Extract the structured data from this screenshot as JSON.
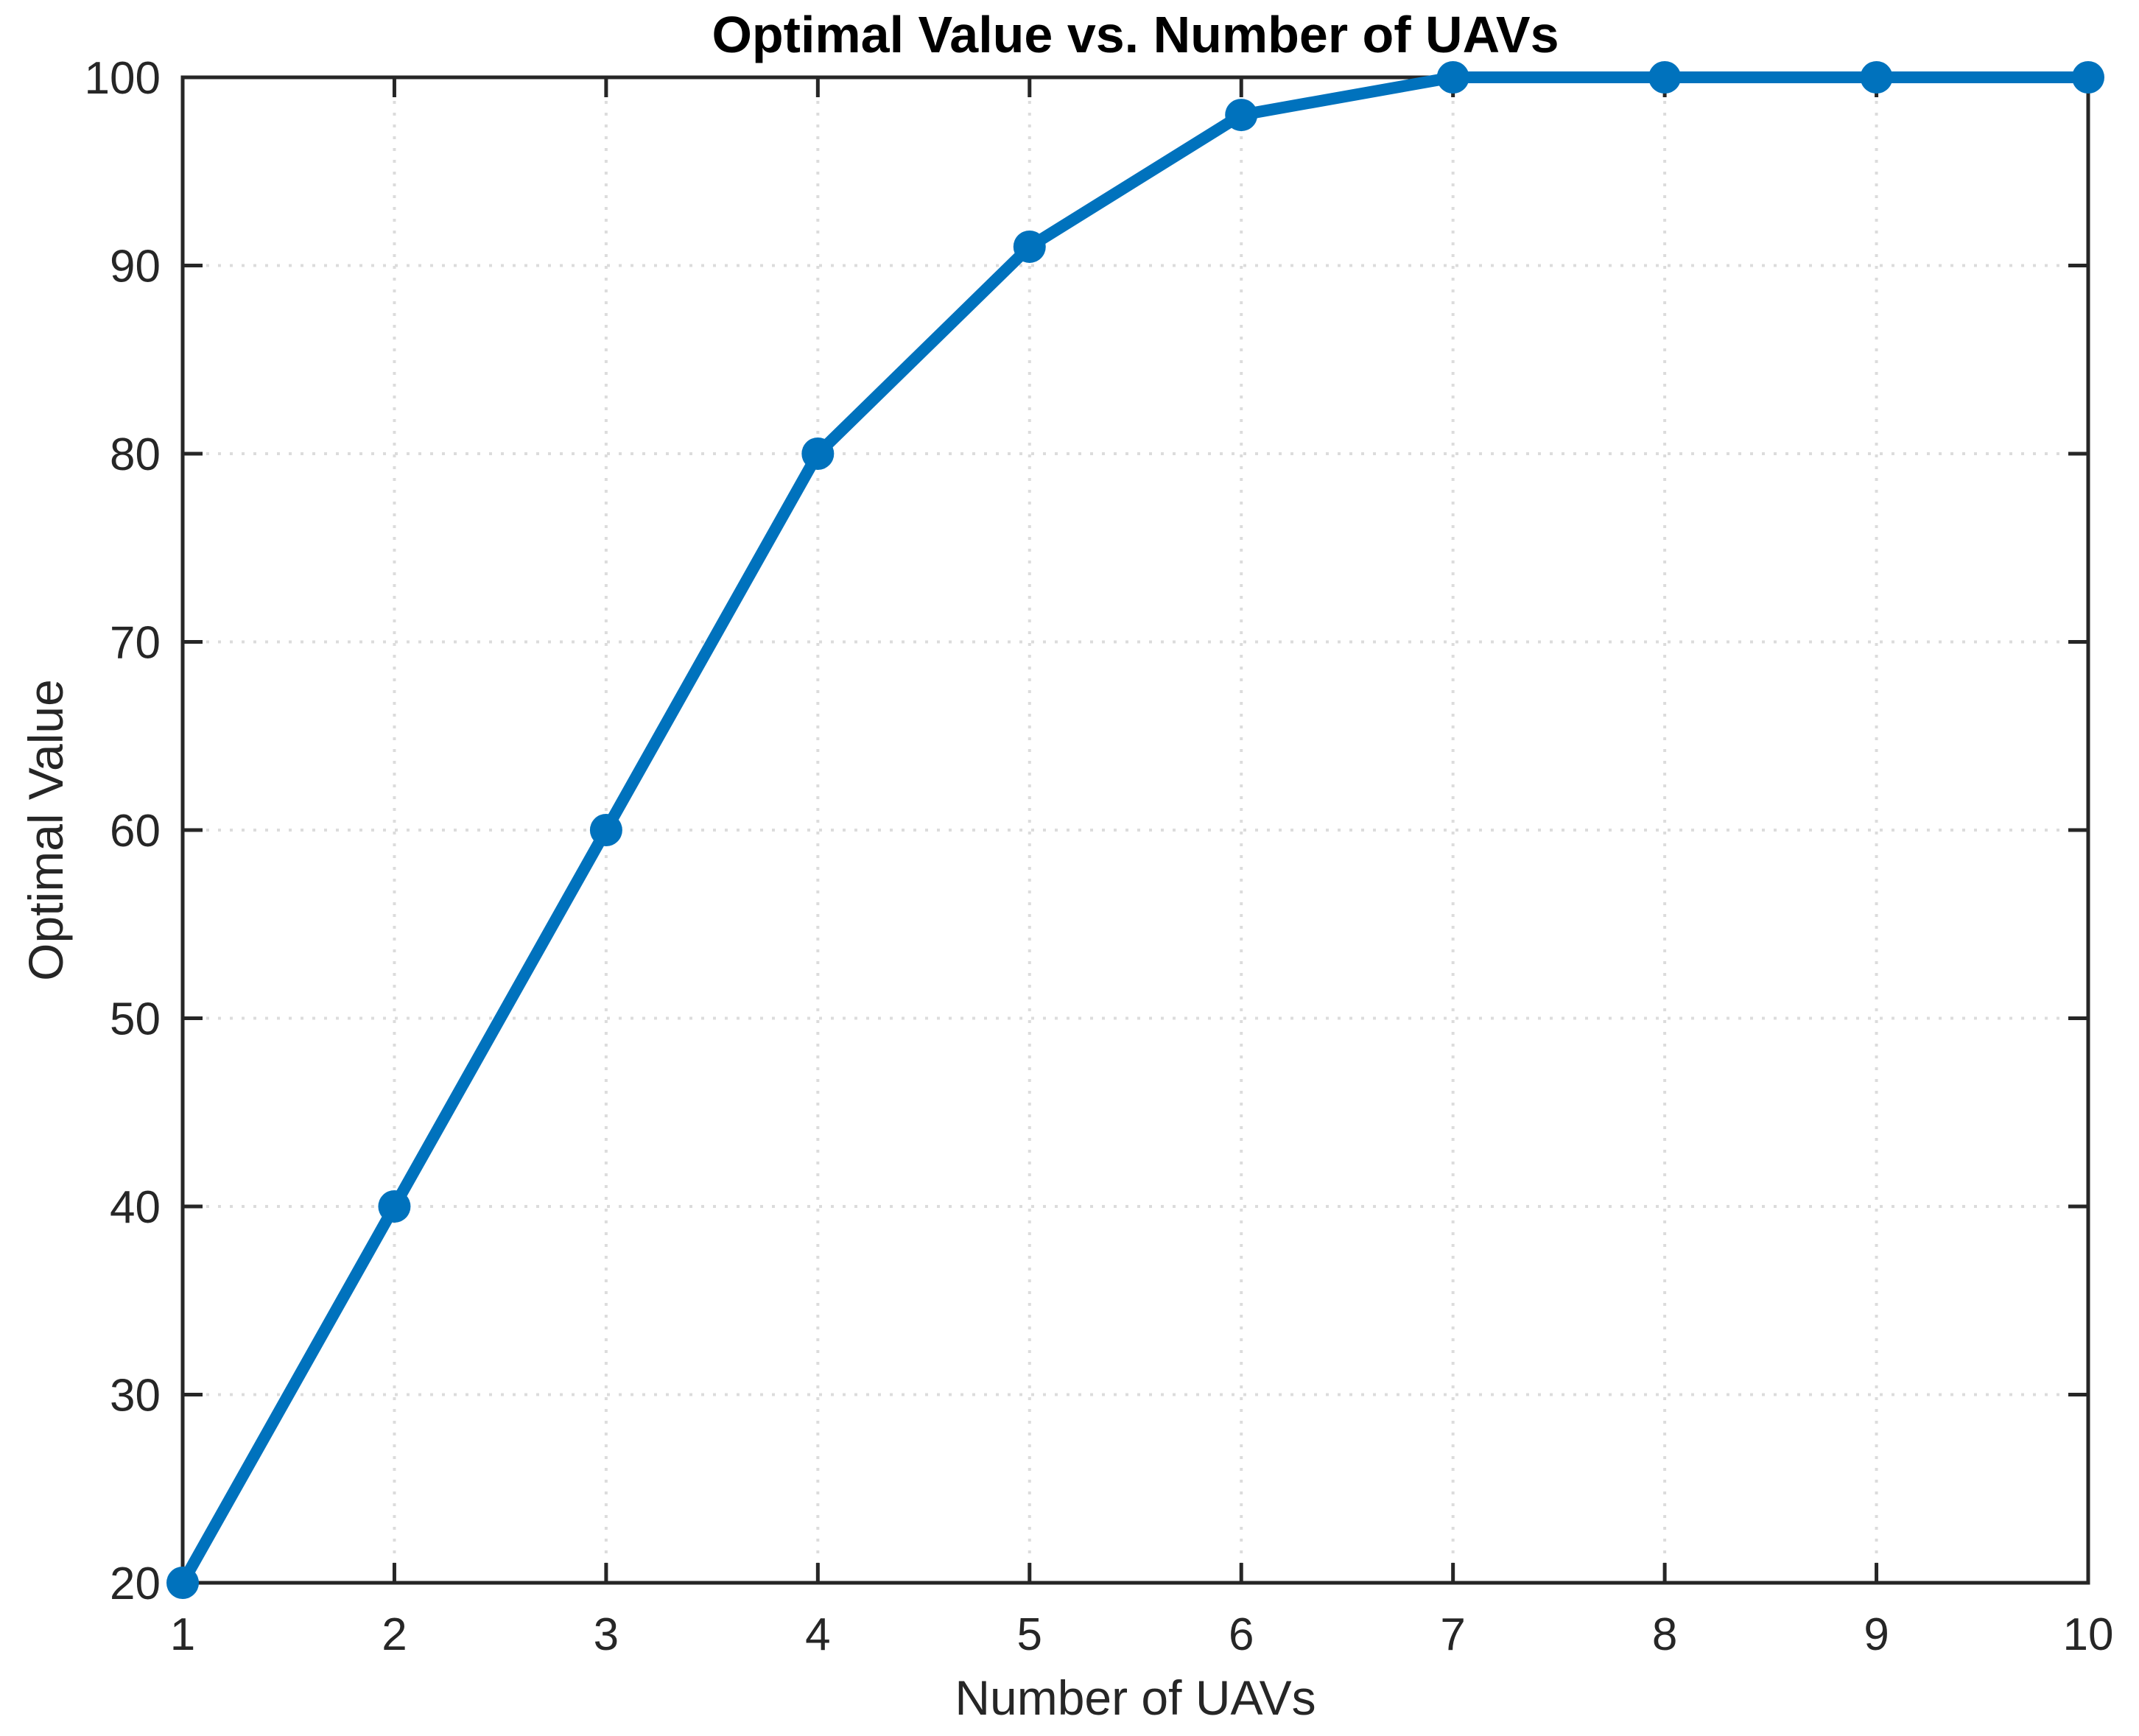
{
  "chart_data": {
    "type": "line",
    "title": "Optimal Value vs. Number of UAVs",
    "xlabel": "Number of UAVs",
    "ylabel": "Optimal Value",
    "x": [
      1,
      2,
      3,
      4,
      5,
      6,
      7,
      8,
      9,
      10
    ],
    "y": [
      20,
      40,
      60,
      80,
      91,
      98,
      100,
      100,
      100,
      100
    ],
    "xlim": [
      1,
      10
    ],
    "ylim": [
      20,
      100
    ],
    "xticks": [
      1,
      2,
      3,
      4,
      5,
      6,
      7,
      8,
      9,
      10
    ],
    "yticks": [
      20,
      30,
      40,
      50,
      60,
      70,
      80,
      90,
      100
    ],
    "grid": "dotted",
    "legend": "none",
    "line_color": "#0072BD",
    "marker": "filled-circle",
    "marker_color": "#0072BD",
    "grid_color": "#dcdcdc",
    "axis_color": "#262626",
    "title_color": "#000000"
  }
}
